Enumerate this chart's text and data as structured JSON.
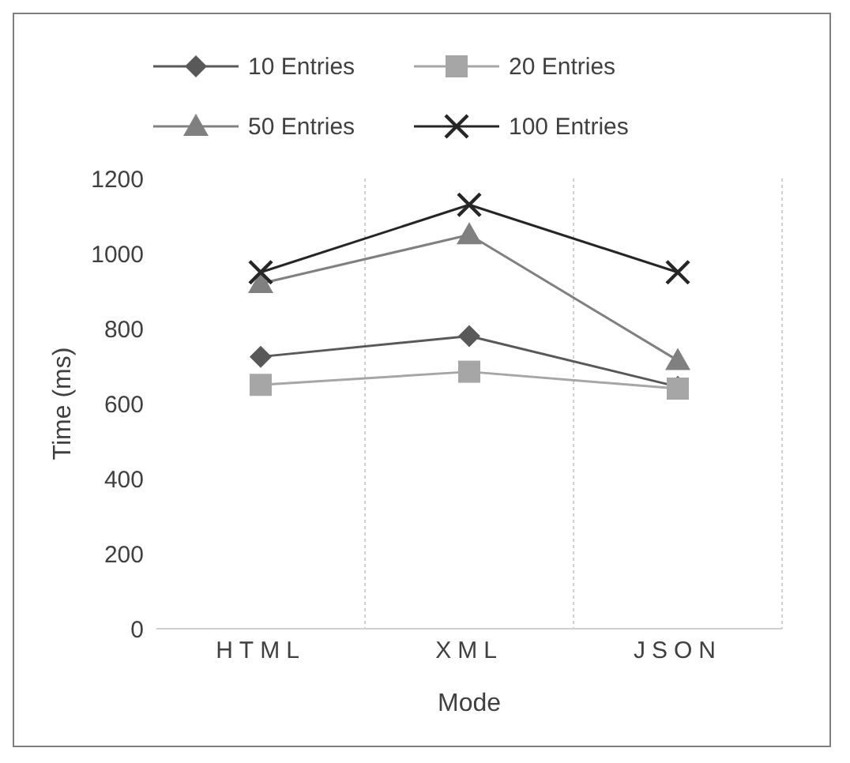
{
  "chart_data": {
    "type": "line",
    "xlabel": "Mode",
    "ylabel": "Time (ms)",
    "categories": [
      "HTML",
      "XML",
      "JSON"
    ],
    "series": [
      {
        "name": "10 Entries",
        "color": "#595959",
        "marker": "diamond",
        "values": [
          725,
          780,
          645
        ]
      },
      {
        "name": "20 Entries",
        "color": "#a6a6a6",
        "marker": "square",
        "values": [
          650,
          685,
          640
        ]
      },
      {
        "name": "50 Entries",
        "color": "#808080",
        "marker": "triangle",
        "values": [
          920,
          1050,
          715
        ]
      },
      {
        "name": "100 Entries",
        "color": "#262626",
        "marker": "cross",
        "values": [
          950,
          1130,
          950
        ]
      }
    ],
    "ylim": [
      0,
      1200
    ],
    "yticks": [
      0,
      200,
      400,
      600,
      800,
      1000,
      1200
    ],
    "grid": "x",
    "legend": "top"
  }
}
